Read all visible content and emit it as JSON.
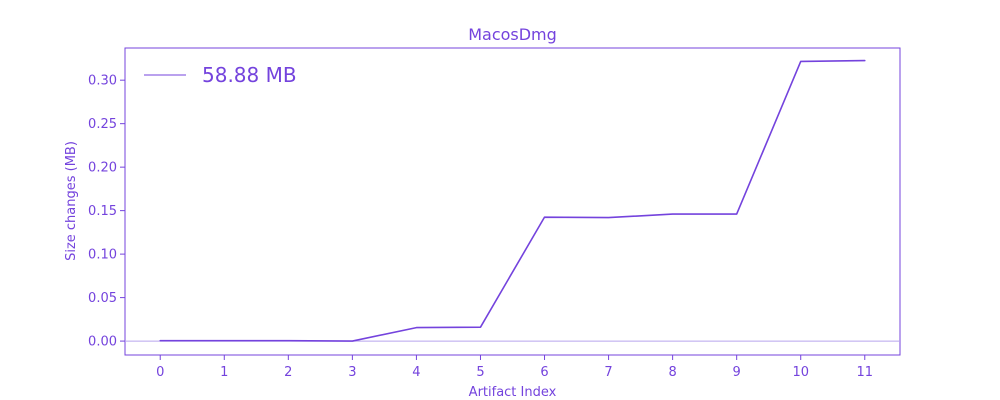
{
  "colors": {
    "accent": "#7443dd",
    "baseline": "#b7a4ee"
  },
  "chart_data": {
    "type": "line",
    "title": "MacosDmg",
    "xlabel": "Artifact Index",
    "ylabel": "Size changes (MB)",
    "x": [
      0,
      1,
      2,
      3,
      4,
      5,
      6,
      7,
      8,
      9,
      10,
      11
    ],
    "series": [
      {
        "name": "58.88 MB",
        "values": [
          0.0005,
          0.0005,
          0.0005,
          0.0,
          0.0155,
          0.016,
          0.1425,
          0.142,
          0.146,
          0.146,
          0.3215,
          0.3225
        ]
      }
    ],
    "xlim": [
      -0.55,
      11.55
    ],
    "ylim": [
      -0.016,
      0.337
    ],
    "xticks": [
      0,
      1,
      2,
      3,
      4,
      5,
      6,
      7,
      8,
      9,
      10,
      11
    ],
    "yticks": [
      0.0,
      0.05,
      0.1,
      0.15,
      0.2,
      0.25,
      0.3
    ],
    "ytick_labels": [
      "0.00",
      "0.05",
      "0.10",
      "0.15",
      "0.20",
      "0.25",
      "0.30"
    ],
    "baseline_y": 0,
    "grid": false,
    "legend_position": "top-left"
  }
}
